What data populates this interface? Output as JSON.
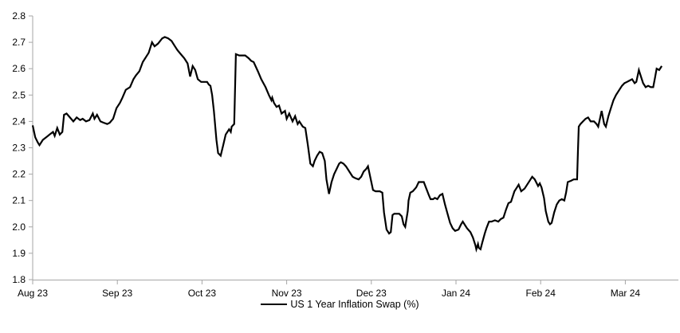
{
  "colors": {
    "background": "#ffffff",
    "axis": "#a6a6a6",
    "series_line": "#000000",
    "text": "#000000"
  },
  "chart_data": {
    "type": "line",
    "title": "",
    "grid": false,
    "legend_position": "bottom-center",
    "ylim": [
      1.8,
      2.8
    ],
    "y_tick_step": 0.1,
    "y_tick_labels": [
      "1.8",
      "1.9",
      "2.0",
      "2.1",
      "2.2",
      "2.3",
      "2.4",
      "2.5",
      "2.6",
      "2.7",
      "2.8"
    ],
    "x_tick_labels": [
      "Aug 23",
      "Sep 23",
      "Oct 23",
      "Nov 23",
      "Dec 23",
      "Jan 24",
      "Feb 24",
      "Mar 24"
    ],
    "x_unit": "months after Aug 23 tick (0 = Aug 23, 7 = Mar 24)",
    "xlim": [
      0,
      7.62
    ],
    "series": [
      {
        "name": "US 1 Year Inflation Swap (%)",
        "color": "#000000",
        "points": [
          [
            0,
            2.385
          ],
          [
            0.03,
            2.34
          ],
          [
            0.06,
            2.32
          ],
          [
            0.08,
            2.31
          ],
          [
            0.12,
            2.33
          ],
          [
            0.16,
            2.34
          ],
          [
            0.2,
            2.35
          ],
          [
            0.24,
            2.36
          ],
          [
            0.26,
            2.345
          ],
          [
            0.29,
            2.375
          ],
          [
            0.32,
            2.35
          ],
          [
            0.35,
            2.36
          ],
          [
            0.37,
            2.425
          ],
          [
            0.4,
            2.43
          ],
          [
            0.44,
            2.415
          ],
          [
            0.48,
            2.4
          ],
          [
            0.52,
            2.415
          ],
          [
            0.56,
            2.405
          ],
          [
            0.59,
            2.41
          ],
          [
            0.63,
            2.4
          ],
          [
            0.67,
            2.405
          ],
          [
            0.71,
            2.43
          ],
          [
            0.73,
            2.41
          ],
          [
            0.76,
            2.425
          ],
          [
            0.8,
            2.4
          ],
          [
            0.84,
            2.395
          ],
          [
            0.88,
            2.39
          ],
          [
            0.91,
            2.395
          ],
          [
            0.95,
            2.41
          ],
          [
            0.99,
            2.45
          ],
          [
            1.03,
            2.47
          ],
          [
            1.06,
            2.49
          ],
          [
            1.1,
            2.52
          ],
          [
            1.15,
            2.53
          ],
          [
            1.19,
            2.56
          ],
          [
            1.22,
            2.575
          ],
          [
            1.26,
            2.59
          ],
          [
            1.3,
            2.625
          ],
          [
            1.34,
            2.645
          ],
          [
            1.37,
            2.66
          ],
          [
            1.41,
            2.7
          ],
          [
            1.44,
            2.685
          ],
          [
            1.48,
            2.695
          ],
          [
            1.53,
            2.715
          ],
          [
            1.56,
            2.72
          ],
          [
            1.6,
            2.715
          ],
          [
            1.64,
            2.705
          ],
          [
            1.68,
            2.685
          ],
          [
            1.71,
            2.67
          ],
          [
            1.75,
            2.655
          ],
          [
            1.79,
            2.64
          ],
          [
            1.83,
            2.62
          ],
          [
            1.86,
            2.57
          ],
          [
            1.89,
            2.61
          ],
          [
            1.92,
            2.595
          ],
          [
            1.95,
            2.56
          ],
          [
            1.99,
            2.55
          ],
          [
            2.02,
            2.55
          ],
          [
            2.06,
            2.55
          ],
          [
            2.08,
            2.54
          ],
          [
            2.1,
            2.535
          ],
          [
            2.12,
            2.5
          ],
          [
            2.14,
            2.44
          ],
          [
            2.17,
            2.33
          ],
          [
            2.19,
            2.28
          ],
          [
            2.22,
            2.27
          ],
          [
            2.25,
            2.31
          ],
          [
            2.28,
            2.35
          ],
          [
            2.32,
            2.37
          ],
          [
            2.34,
            2.36
          ],
          [
            2.35,
            2.38
          ],
          [
            2.38,
            2.39
          ],
          [
            2.4,
            2.655
          ],
          [
            2.44,
            2.65
          ],
          [
            2.48,
            2.65
          ],
          [
            2.51,
            2.65
          ],
          [
            2.55,
            2.64
          ],
          [
            2.58,
            2.63
          ],
          [
            2.61,
            2.625
          ],
          [
            2.66,
            2.59
          ],
          [
            2.7,
            2.56
          ],
          [
            2.75,
            2.53
          ],
          [
            2.79,
            2.5
          ],
          [
            2.82,
            2.48
          ],
          [
            2.83,
            2.49
          ],
          [
            2.85,
            2.47
          ],
          [
            2.88,
            2.455
          ],
          [
            2.91,
            2.46
          ],
          [
            2.94,
            2.43
          ],
          [
            2.98,
            2.44
          ],
          [
            3,
            2.41
          ],
          [
            3.03,
            2.43
          ],
          [
            3.07,
            2.4
          ],
          [
            3.1,
            2.42
          ],
          [
            3.13,
            2.39
          ],
          [
            3.15,
            2.4
          ],
          [
            3.19,
            2.38
          ],
          [
            3.22,
            2.375
          ],
          [
            3.25,
            2.31
          ],
          [
            3.28,
            2.24
          ],
          [
            3.31,
            2.23
          ],
          [
            3.33,
            2.25
          ],
          [
            3.36,
            2.27
          ],
          [
            3.39,
            2.285
          ],
          [
            3.42,
            2.28
          ],
          [
            3.45,
            2.25
          ],
          [
            3.47,
            2.18
          ],
          [
            3.5,
            2.125
          ],
          [
            3.53,
            2.17
          ],
          [
            3.56,
            2.2
          ],
          [
            3.59,
            2.22
          ],
          [
            3.62,
            2.24
          ],
          [
            3.64,
            2.245
          ],
          [
            3.67,
            2.24
          ],
          [
            3.7,
            2.23
          ],
          [
            3.73,
            2.215
          ],
          [
            3.76,
            2.2
          ],
          [
            3.78,
            2.19
          ],
          [
            3.81,
            2.185
          ],
          [
            3.85,
            2.18
          ],
          [
            3.88,
            2.19
          ],
          [
            3.91,
            2.21
          ],
          [
            3.94,
            2.22
          ],
          [
            3.96,
            2.23
          ],
          [
            3.98,
            2.2
          ],
          [
            4,
            2.17
          ],
          [
            4.02,
            2.14
          ],
          [
            4.05,
            2.135
          ],
          [
            4.08,
            2.135
          ],
          [
            4.1,
            2.135
          ],
          [
            4.13,
            2.13
          ],
          [
            4.15,
            2.055
          ],
          [
            4.18,
            1.99
          ],
          [
            4.21,
            1.975
          ],
          [
            4.23,
            1.98
          ],
          [
            4.25,
            2.045
          ],
          [
            4.27,
            2.05
          ],
          [
            4.3,
            2.05
          ],
          [
            4.33,
            2.05
          ],
          [
            4.36,
            2.04
          ],
          [
            4.38,
            2.01
          ],
          [
            4.4,
            2
          ],
          [
            4.43,
            2.06
          ],
          [
            4.44,
            2.1
          ],
          [
            4.46,
            2.13
          ],
          [
            4.49,
            2.135
          ],
          [
            4.53,
            2.15
          ],
          [
            4.56,
            2.17
          ],
          [
            4.59,
            2.17
          ],
          [
            4.62,
            2.17
          ],
          [
            4.65,
            2.145
          ],
          [
            4.68,
            2.12
          ],
          [
            4.7,
            2.105
          ],
          [
            4.73,
            2.105
          ],
          [
            4.75,
            2.11
          ],
          [
            4.78,
            2.105
          ],
          [
            4.81,
            2.12
          ],
          [
            4.84,
            2.125
          ],
          [
            4.87,
            2.085
          ],
          [
            4.9,
            2.05
          ],
          [
            4.93,
            2.015
          ],
          [
            4.96,
            1.995
          ],
          [
            4.99,
            1.985
          ],
          [
            5.03,
            1.99
          ],
          [
            5.06,
            2.01
          ],
          [
            5.08,
            2.02
          ],
          [
            5.1,
            2.01
          ],
          [
            5.13,
            1.995
          ],
          [
            5.17,
            1.98
          ],
          [
            5.2,
            1.96
          ],
          [
            5.23,
            1.93
          ],
          [
            5.24,
            1.915
          ],
          [
            5.26,
            1.935
          ],
          [
            5.27,
            1.92
          ],
          [
            5.29,
            1.915
          ],
          [
            5.31,
            1.94
          ],
          [
            5.34,
            1.975
          ],
          [
            5.36,
            1.995
          ],
          [
            5.39,
            2.02
          ],
          [
            5.42,
            2.02
          ],
          [
            5.46,
            2.025
          ],
          [
            5.5,
            2.02
          ],
          [
            5.53,
            2.03
          ],
          [
            5.56,
            2.035
          ],
          [
            5.59,
            2.065
          ],
          [
            5.62,
            2.09
          ],
          [
            5.65,
            2.095
          ],
          [
            5.69,
            2.135
          ],
          [
            5.72,
            2.15
          ],
          [
            5.74,
            2.16
          ],
          [
            5.77,
            2.135
          ],
          [
            5.81,
            2.145
          ],
          [
            5.85,
            2.165
          ],
          [
            5.88,
            2.18
          ],
          [
            5.9,
            2.19
          ],
          [
            5.93,
            2.18
          ],
          [
            5.97,
            2.155
          ],
          [
            5.99,
            2.165
          ],
          [
            6.01,
            2.15
          ],
          [
            6.04,
            2.11
          ],
          [
            6.06,
            2.06
          ],
          [
            6.09,
            2.02
          ],
          [
            6.11,
            2.01
          ],
          [
            6.13,
            2.015
          ],
          [
            6.16,
            2.055
          ],
          [
            6.19,
            2.085
          ],
          [
            6.22,
            2.1
          ],
          [
            6.25,
            2.105
          ],
          [
            6.28,
            2.1
          ],
          [
            6.3,
            2.13
          ],
          [
            6.32,
            2.17
          ],
          [
            6.36,
            2.175
          ],
          [
            6.39,
            2.18
          ],
          [
            6.43,
            2.18
          ],
          [
            6.44,
            2.28
          ],
          [
            6.45,
            2.38
          ],
          [
            6.47,
            2.39
          ],
          [
            6.5,
            2.4
          ],
          [
            6.53,
            2.41
          ],
          [
            6.56,
            2.415
          ],
          [
            6.59,
            2.4
          ],
          [
            6.63,
            2.4
          ],
          [
            6.66,
            2.39
          ],
          [
            6.68,
            2.38
          ],
          [
            6.72,
            2.44
          ],
          [
            6.75,
            2.39
          ],
          [
            6.77,
            2.38
          ],
          [
            6.8,
            2.42
          ],
          [
            6.83,
            2.45
          ],
          [
            6.86,
            2.48
          ],
          [
            6.89,
            2.5
          ],
          [
            6.92,
            2.515
          ],
          [
            6.96,
            2.535
          ],
          [
            6.99,
            2.545
          ],
          [
            7.02,
            2.55
          ],
          [
            7.05,
            2.555
          ],
          [
            7.08,
            2.56
          ],
          [
            7.11,
            2.545
          ],
          [
            7.13,
            2.55
          ],
          [
            7.16,
            2.595
          ],
          [
            7.18,
            2.575
          ],
          [
            7.21,
            2.545
          ],
          [
            7.24,
            2.53
          ],
          [
            7.27,
            2.535
          ],
          [
            7.3,
            2.53
          ],
          [
            7.33,
            2.53
          ],
          [
            7.35,
            2.565
          ],
          [
            7.37,
            2.6
          ],
          [
            7.4,
            2.595
          ],
          [
            7.43,
            2.61
          ]
        ]
      }
    ]
  }
}
